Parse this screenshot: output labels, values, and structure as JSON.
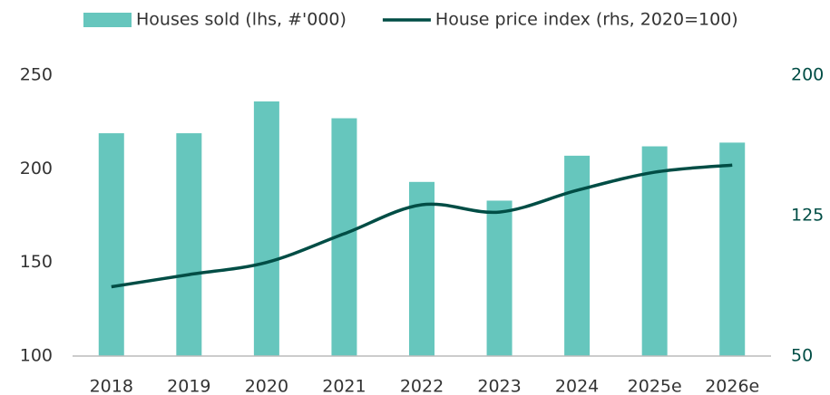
{
  "chart_data": {
    "type": "bar-line",
    "categories": [
      "2018",
      "2019",
      "2020",
      "2021",
      "2022",
      "2023",
      "2024",
      "2025e",
      "2026e"
    ],
    "series": [
      {
        "name": "Houses sold (lhs, #'000)",
        "color": "#66c6bd",
        "type": "bar",
        "values": [
          219,
          219,
          236,
          227,
          193,
          183,
          207,
          212,
          214
        ]
      },
      {
        "name": "House price index (rhs, 2020=100)",
        "color": "#004d45",
        "type": "line",
        "axis": "y2",
        "values": [
          87,
          93.5,
          100,
          115.3,
          130.8,
          126.9,
          138.5,
          148.2,
          152
        ]
      }
    ],
    "ylim": [
      100,
      250
    ],
    "yticks": [
      100,
      150,
      200,
      250
    ],
    "y2lim": [
      50,
      200
    ],
    "y2ticks": [
      50,
      125,
      200
    ]
  }
}
